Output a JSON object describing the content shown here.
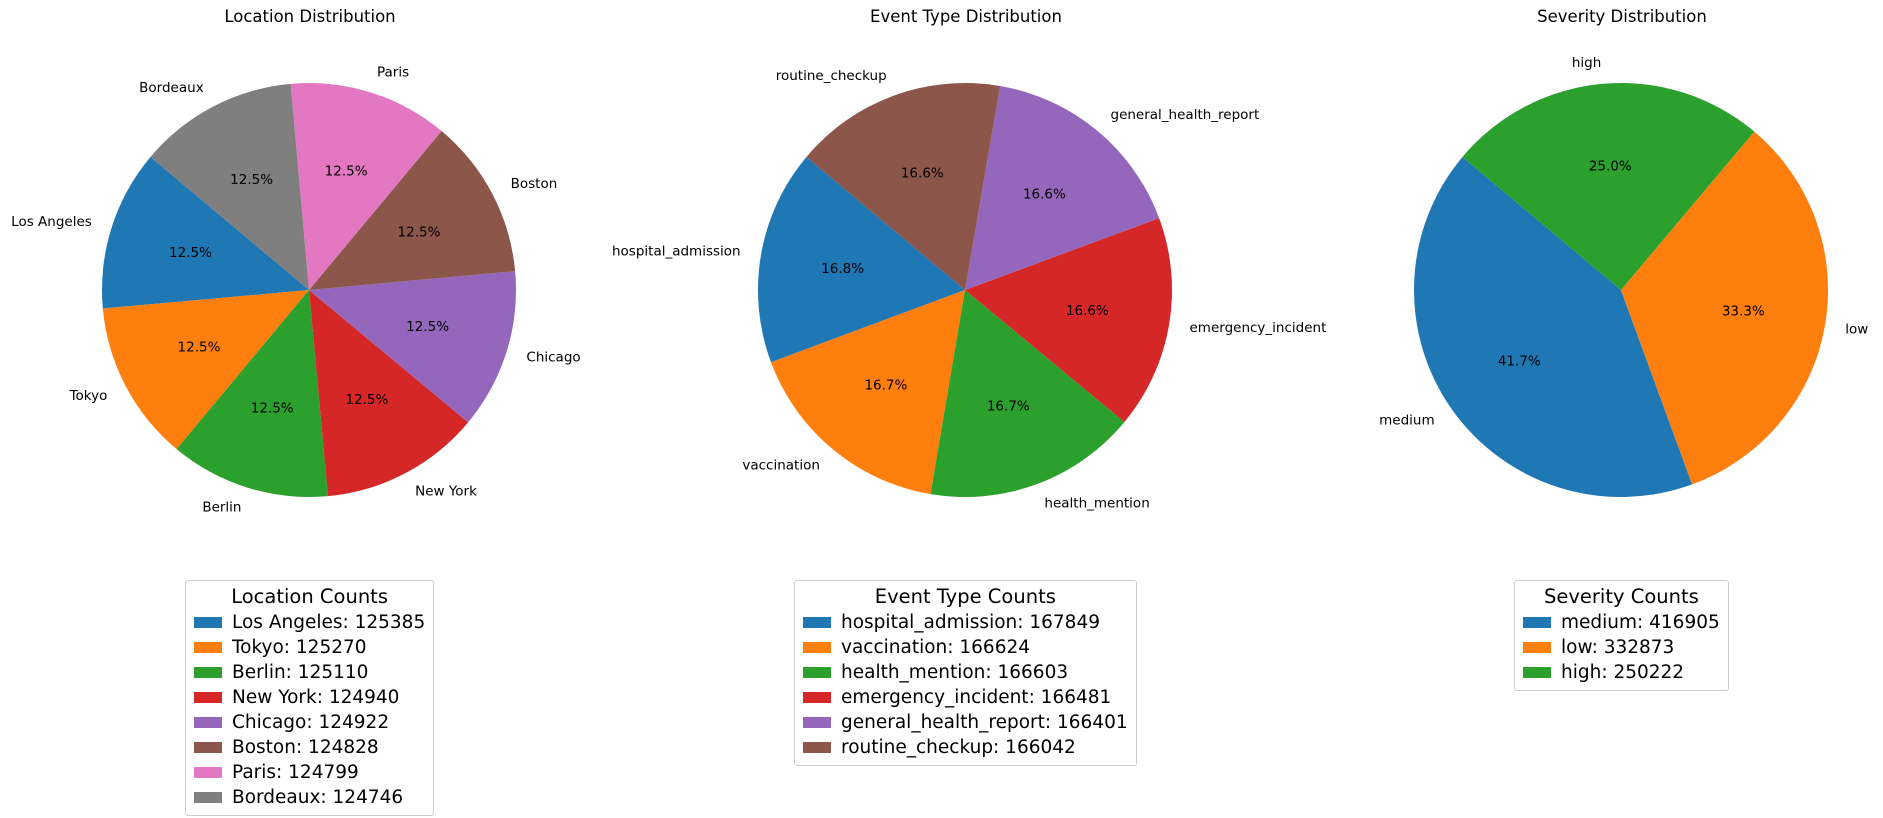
{
  "chart_data": [
    {
      "type": "pie",
      "title": "Location Distribution",
      "start_angle_deg": 140,
      "labels": [
        "Los Angeles",
        "Tokyo",
        "Berlin",
        "New York",
        "Chicago",
        "Boston",
        "Paris",
        "Bordeaux"
      ],
      "values": [
        125385,
        125270,
        125110,
        124940,
        124922,
        124828,
        124799,
        124746
      ],
      "percent_labels": [
        "12.5%",
        "12.5%",
        "12.5%",
        "12.5%",
        "12.5%",
        "12.5%",
        "12.5%",
        "12.5%"
      ],
      "colors": [
        "#1f77b4",
        "#ff7f0e",
        "#2ca02c",
        "#d62728",
        "#9467bd",
        "#8c564b",
        "#e377c2",
        "#7f7f7f"
      ],
      "legend_title": "Location Counts",
      "legend_entries": [
        "Los Angeles: 125385",
        "Tokyo: 125270",
        "Berlin: 125110",
        "New York: 124940",
        "Chicago: 124922",
        "Boston: 124828",
        "Paris: 124799",
        "Bordeaux: 124746"
      ],
      "legend_placement": "below"
    },
    {
      "type": "pie",
      "title": "Event Type Distribution",
      "start_angle_deg": 140,
      "labels": [
        "hospital_admission",
        "vaccination",
        "health_mention",
        "emergency_incident",
        "general_health_report",
        "routine_checkup"
      ],
      "values": [
        167849,
        166624,
        166603,
        166481,
        166401,
        166042
      ],
      "percent_labels": [
        "16.8%",
        "16.7%",
        "16.7%",
        "16.6%",
        "16.6%",
        "16.6%"
      ],
      "colors": [
        "#1f77b4",
        "#ff7f0e",
        "#2ca02c",
        "#d62728",
        "#9467bd",
        "#8c564b"
      ],
      "legend_title": "Event Type Counts",
      "legend_entries": [
        "hospital_admission: 167849",
        "vaccination: 166624",
        "health_mention: 166603",
        "emergency_incident: 166481",
        "general_health_report: 166401",
        "routine_checkup: 166042"
      ],
      "legend_placement": "below"
    },
    {
      "type": "pie",
      "title": "Severity Distribution",
      "start_angle_deg": 140,
      "labels": [
        "medium",
        "low",
        "high"
      ],
      "values": [
        416905,
        332873,
        250222
      ],
      "percent_labels": [
        "41.7%",
        "33.3%",
        "25.0%"
      ],
      "colors": [
        "#1f77b4",
        "#ff7f0e",
        "#2ca02c"
      ],
      "legend_title": "Severity Counts",
      "legend_entries": [
        "medium: 416905",
        "low: 332873",
        "high: 250222"
      ],
      "legend_placement": "below"
    }
  ]
}
